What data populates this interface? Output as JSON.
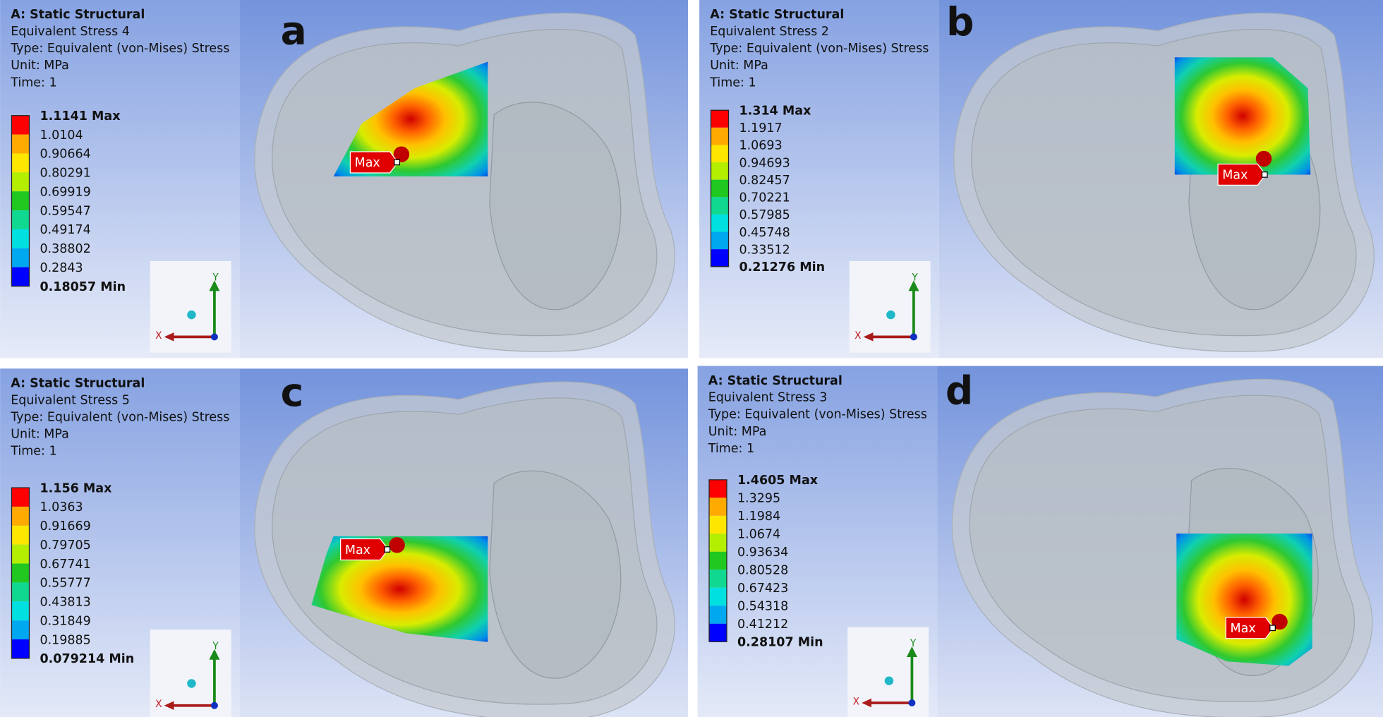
{
  "panels": [
    {
      "letter": "a",
      "title": "A: Static Structural",
      "result": "Equivalent Stress 4",
      "type": "Type: Equivalent (von-Mises) Stress",
      "unit": "Unit: MPa",
      "time": "Time: 1",
      "legend": [
        "1.1141 Max",
        "1.0104",
        "0.90664",
        "0.80291",
        "0.69919",
        "0.59547",
        "0.49174",
        "0.38802",
        "0.2843",
        "0.18057 Min"
      ],
      "marker": "Max",
      "axes": {
        "x": "X",
        "y": "Y"
      }
    },
    {
      "letter": "b",
      "title": "A: Static Structural",
      "result": "Equivalent Stress 2",
      "type": "Type: Equivalent (von-Mises) Stress",
      "unit": "Unit: MPa",
      "time": "Time: 1",
      "legend": [
        "1.314 Max",
        "1.1917",
        "1.0693",
        "0.94693",
        "0.82457",
        "0.70221",
        "0.57985",
        "0.45748",
        "0.33512",
        "0.21276 Min"
      ],
      "marker": "Max",
      "axes": {
        "x": "X",
        "y": "Y"
      }
    },
    {
      "letter": "c",
      "title": "A: Static Structural",
      "result": "Equivalent Stress 5",
      "type": "Type: Equivalent (von-Mises) Stress",
      "unit": "Unit: MPa",
      "time": "Time: 1",
      "legend": [
        "1.156 Max",
        "1.0363",
        "0.91669",
        "0.79705",
        "0.67741",
        "0.55777",
        "0.43813",
        "0.31849",
        "0.19885",
        "0.079214 Min"
      ],
      "marker": "Max",
      "axes": {
        "x": "X",
        "y": "Y"
      }
    },
    {
      "letter": "d",
      "title": "A: Static Structural",
      "result": "Equivalent Stress 3",
      "type": "Type: Equivalent (von-Mises) Stress",
      "unit": "Unit: MPa",
      "time": "Time: 1",
      "legend": [
        "1.4605 Max",
        "1.3295",
        "1.1984",
        "1.0674",
        "0.93634",
        "0.80528",
        "0.67423",
        "0.54318",
        "0.41212",
        "0.28107 Min"
      ],
      "marker": "Max",
      "axes": {
        "x": "X",
        "y": "Y"
      }
    }
  ]
}
